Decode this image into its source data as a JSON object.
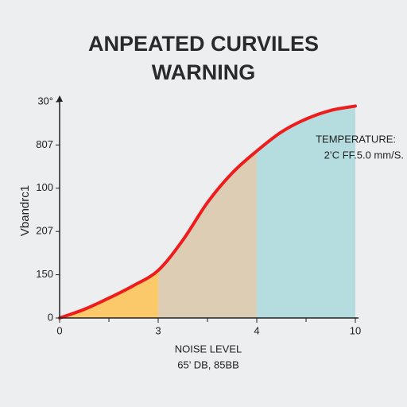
{
  "chart_data": {
    "type": "line",
    "title": [
      "ANPEATED CURVILES",
      "WARNING"
    ],
    "y_label": "Vbandrc1",
    "x_label": [
      "NOISE LEVEL",
      "65’ DB, 85BB"
    ],
    "annotation": [
      "TEMPERATURE:",
      "2’C FF.5.0 mm/S."
    ],
    "xlim": [
      0,
      3
    ],
    "xticks": [
      0,
      {
        "value": 1,
        "label": "3"
      },
      {
        "value": 2,
        "label": "4"
      },
      {
        "value": 3,
        "label": "10"
      }
    ],
    "xminorticks": [
      0.5,
      1.5,
      2.5
    ],
    "ylim": [
      0,
      5
    ],
    "yticks": [
      0,
      {
        "value": 1,
        "label": "150"
      },
      {
        "value": 2,
        "label": "207"
      },
      {
        "value": 3,
        "label": "100"
      },
      {
        "value": 4,
        "label": "807"
      },
      {
        "value": 5,
        "label": "30°"
      }
    ],
    "x": [
      0,
      0.25,
      0.5,
      0.75,
      1,
      1.25,
      1.5,
      1.75,
      2,
      2.25,
      2.5,
      2.75,
      3
    ],
    "values": [
      0,
      0.2,
      0.46,
      0.75,
      1.1,
      1.8,
      2.67,
      3.35,
      3.86,
      4.3,
      4.6,
      4.8,
      4.9
    ],
    "color": "#ee1c1c",
    "regions": [
      {
        "from": 0,
        "to": 1,
        "color": "#fbc96a"
      },
      {
        "from": 1,
        "to": 2,
        "color": "#dccdb4"
      },
      {
        "from": 2,
        "to": 3,
        "color": "#b5dcdf"
      }
    ]
  }
}
